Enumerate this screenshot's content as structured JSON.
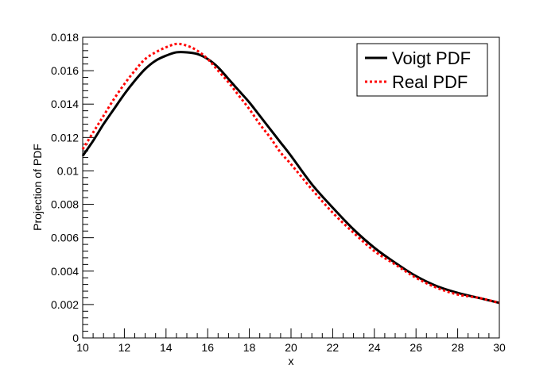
{
  "chart_data": {
    "type": "line",
    "title": "",
    "xlabel": "x",
    "ylabel": "Projection of PDF",
    "xlim": [
      10,
      30
    ],
    "ylim": [
      0,
      0.018
    ],
    "x_ticks": [
      "10",
      "12",
      "14",
      "16",
      "18",
      "20",
      "22",
      "24",
      "26",
      "28",
      "30"
    ],
    "y_ticks": [
      "0",
      "0.002",
      "0.004",
      "0.006",
      "0.008",
      "0.01",
      "0.012",
      "0.014",
      "0.016",
      "0.018"
    ],
    "grid": false,
    "legend_position": "top-right",
    "series": [
      {
        "name": "Voigt PDF",
        "color": "#000000",
        "style": "solid",
        "x": [
          10,
          10.5,
          11,
          11.5,
          12,
          12.5,
          13,
          13.5,
          14,
          14.5,
          15,
          15.5,
          16,
          16.5,
          17,
          17.5,
          18,
          18.5,
          19,
          19.5,
          20,
          21,
          22,
          23,
          24,
          25,
          26,
          27,
          28,
          29,
          30
        ],
        "values": [
          0.0109,
          0.0118,
          0.0128,
          0.0137,
          0.0146,
          0.0154,
          0.0161,
          0.0166,
          0.0169,
          0.0171,
          0.0171,
          0.017,
          0.0167,
          0.0162,
          0.0155,
          0.0148,
          0.0141,
          0.0133,
          0.0125,
          0.0117,
          0.0109,
          0.0092,
          0.0078,
          0.0065,
          0.0054,
          0.0045,
          0.0037,
          0.0031,
          0.0027,
          0.0024,
          0.0021
        ]
      },
      {
        "name": "Real PDF",
        "color": "#ff0000",
        "style": "dotted",
        "x": [
          10,
          10.5,
          11,
          11.5,
          12,
          12.5,
          13,
          13.5,
          14,
          14.5,
          15,
          15.5,
          16,
          16.5,
          17,
          17.5,
          18,
          18.5,
          19,
          19.5,
          20,
          21,
          22,
          23,
          24,
          25,
          26,
          27,
          28,
          29,
          30
        ],
        "values": [
          0.0113,
          0.0123,
          0.0133,
          0.0143,
          0.0152,
          0.016,
          0.0167,
          0.0171,
          0.0174,
          0.0176,
          0.0175,
          0.0172,
          0.0167,
          0.016,
          0.0153,
          0.0145,
          0.0137,
          0.0128,
          0.012,
          0.0111,
          0.0104,
          0.0089,
          0.0075,
          0.0063,
          0.0052,
          0.0044,
          0.0036,
          0.003,
          0.0026,
          0.0024,
          0.0021
        ]
      }
    ]
  }
}
